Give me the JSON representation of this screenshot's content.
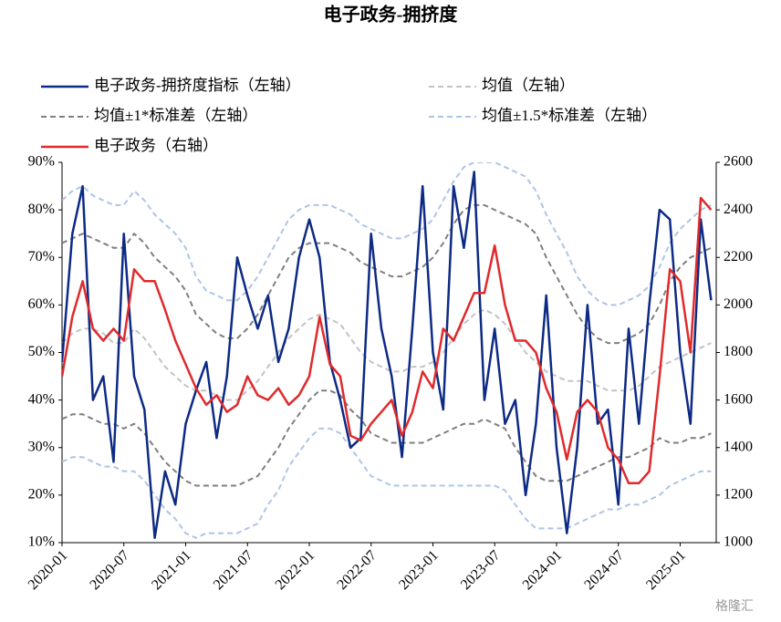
{
  "chart_data": {
    "type": "line",
    "title": "电子政务-拥挤度",
    "x": [
      "2020-01",
      "2020-02",
      "2020-03",
      "2020-04",
      "2020-05",
      "2020-06",
      "2020-07",
      "2020-08",
      "2020-09",
      "2020-10",
      "2020-11",
      "2020-12",
      "2021-01",
      "2021-02",
      "2021-03",
      "2021-04",
      "2021-05",
      "2021-06",
      "2021-07",
      "2021-08",
      "2021-09",
      "2021-10",
      "2021-11",
      "2021-12",
      "2022-01",
      "2022-02",
      "2022-03",
      "2022-04",
      "2022-05",
      "2022-06",
      "2022-07",
      "2022-08",
      "2022-09",
      "2022-10",
      "2022-11",
      "2022-12",
      "2023-01",
      "2023-02",
      "2023-03",
      "2023-04",
      "2023-05",
      "2023-06",
      "2023-07",
      "2023-08",
      "2023-09",
      "2023-10",
      "2023-11",
      "2023-12",
      "2024-01",
      "2024-02",
      "2024-03",
      "2024-04",
      "2024-05",
      "2024-06",
      "2024-07",
      "2024-08",
      "2024-09",
      "2024-10",
      "2024-11",
      "2024-12",
      "2025-01",
      "2025-02",
      "2025-03",
      "2025-04"
    ],
    "xticks": [
      "2020-01",
      "2020-07",
      "2021-01",
      "2021-07",
      "2022-01",
      "2022-07",
      "2023-01",
      "2023-07",
      "2024-01",
      "2024-07",
      "2025-01"
    ],
    "ylim": [
      10,
      90
    ],
    "yticks": [
      {
        "value": 10,
        "label": "10%"
      },
      {
        "value": 20,
        "label": "20%"
      },
      {
        "value": 30,
        "label": "30%"
      },
      {
        "value": 40,
        "label": "40%"
      },
      {
        "value": 50,
        "label": "50%"
      },
      {
        "value": 60,
        "label": "60%"
      },
      {
        "value": 70,
        "label": "70%"
      },
      {
        "value": 80,
        "label": "80%"
      },
      {
        "value": 90,
        "label": "90%"
      }
    ],
    "y2lim": [
      1000,
      2600
    ],
    "y2ticks": [
      1000,
      1200,
      1400,
      1600,
      1800,
      2000,
      2200,
      2400,
      2600
    ],
    "legend": "top",
    "watermark": "格隆汇",
    "series": [
      {
        "name": "电子政务-拥挤度指标（左轴）",
        "color": "#0d2a85",
        "width": 2.5,
        "dash": false,
        "values": [
          48,
          75,
          85,
          40,
          45,
          27,
          75,
          45,
          38,
          11,
          25,
          18,
          35,
          42,
          48,
          32,
          45,
          70,
          62,
          55,
          62,
          48,
          55,
          70,
          78,
          70,
          48,
          40,
          30,
          32,
          75,
          55,
          45,
          28,
          55,
          85,
          50,
          38,
          85,
          72,
          88,
          40,
          55,
          35,
          40,
          20,
          35,
          62,
          30,
          12,
          30,
          60,
          35,
          38,
          18,
          55,
          35,
          60,
          80,
          78,
          50,
          35,
          78,
          61
        ]
      },
      {
        "name": "均值（左轴）",
        "color": "#c3c3c3",
        "width": 2,
        "dash": true,
        "values": [
          52,
          54,
          55,
          55,
          54,
          52,
          52,
          55,
          53,
          50,
          47,
          45,
          43,
          42,
          42,
          41,
          40,
          40,
          42,
          44,
          47,
          50,
          53,
          55,
          57,
          58,
          57,
          56,
          53,
          50,
          48,
          47,
          46,
          46,
          47,
          47,
          48,
          50,
          53,
          56,
          58,
          59,
          58,
          56,
          53,
          50,
          48,
          46,
          45,
          44,
          44,
          44,
          43,
          42,
          42,
          42,
          43,
          45,
          47,
          48,
          49,
          50,
          51,
          52
        ]
      },
      {
        "name": "均值±1*标准差（左轴）",
        "color": "#7f7f7f",
        "width": 2,
        "dash": true,
        "upper": [
          73,
          74,
          75,
          74,
          73,
          72,
          72,
          75,
          73,
          70,
          68,
          66,
          63,
          58,
          56,
          54,
          53,
          53,
          55,
          58,
          62,
          66,
          70,
          72,
          73,
          73,
          73,
          72,
          71,
          69,
          68,
          67,
          66,
          66,
          67,
          68,
          70,
          73,
          77,
          80,
          81,
          81,
          80,
          79,
          78,
          77,
          75,
          70,
          66,
          62,
          58,
          55,
          53,
          52,
          52,
          53,
          54,
          56,
          60,
          65,
          68,
          70,
          71,
          72
        ],
        "lower": [
          36,
          37,
          37,
          36,
          35,
          35,
          34,
          35,
          33,
          30,
          27,
          25,
          23,
          22,
          22,
          22,
          22,
          22,
          23,
          24,
          27,
          30,
          34,
          37,
          40,
          42,
          42,
          41,
          38,
          36,
          33,
          32,
          31,
          31,
          31,
          31,
          32,
          33,
          34,
          35,
          35,
          36,
          35,
          34,
          30,
          27,
          24,
          23,
          23,
          23,
          24,
          25,
          26,
          27,
          28,
          28,
          29,
          30,
          32,
          31,
          31,
          32,
          32,
          33
        ]
      },
      {
        "name": "均值±1.5*标准差（左轴）",
        "color": "#aec4e8",
        "width": 2,
        "dash": true,
        "upper": [
          82,
          84,
          85,
          83,
          82,
          81,
          81,
          84,
          82,
          79,
          77,
          75,
          72,
          66,
          63,
          62,
          61,
          61,
          63,
          66,
          70,
          74,
          78,
          80,
          81,
          81,
          81,
          80,
          79,
          77,
          76,
          75,
          74,
          74,
          75,
          76,
          78,
          82,
          86,
          89,
          90,
          90,
          90,
          89,
          88,
          87,
          84,
          79,
          75,
          71,
          66,
          63,
          61,
          60,
          60,
          61,
          62,
          64,
          68,
          73,
          76,
          78,
          80,
          81
        ],
        "lower": [
          27,
          28,
          28,
          27,
          26,
          26,
          25,
          25,
          23,
          20,
          17,
          15,
          12,
          11,
          12,
          12,
          12,
          12,
          13,
          14,
          18,
          21,
          26,
          29,
          32,
          34,
          34,
          33,
          30,
          27,
          24,
          23,
          22,
          22,
          22,
          22,
          22,
          22,
          22,
          22,
          22,
          22,
          22,
          21,
          18,
          15,
          13,
          13,
          13,
          13,
          14,
          15,
          16,
          17,
          17,
          18,
          18,
          19,
          20,
          22,
          23,
          24,
          25,
          25
        ]
      },
      {
        "name": "电子政务（右轴）",
        "color": "#e02a2c",
        "width": 2.5,
        "dash": false,
        "axis": "y2",
        "values": [
          1700,
          1950,
          2100,
          1900,
          1850,
          1900,
          1850,
          2150,
          2100,
          2100,
          1980,
          1850,
          1750,
          1650,
          1580,
          1620,
          1550,
          1580,
          1700,
          1620,
          1600,
          1650,
          1580,
          1620,
          1700,
          1950,
          1750,
          1700,
          1450,
          1430,
          1500,
          1550,
          1600,
          1450,
          1550,
          1720,
          1650,
          1900,
          1850,
          1950,
          2050,
          2050,
          2250,
          2000,
          1850,
          1850,
          1800,
          1650,
          1550,
          1350,
          1550,
          1600,
          1550,
          1400,
          1350,
          1250,
          1250,
          1300,
          1700,
          2150,
          2100,
          1800,
          2450,
          2400
        ]
      }
    ]
  }
}
